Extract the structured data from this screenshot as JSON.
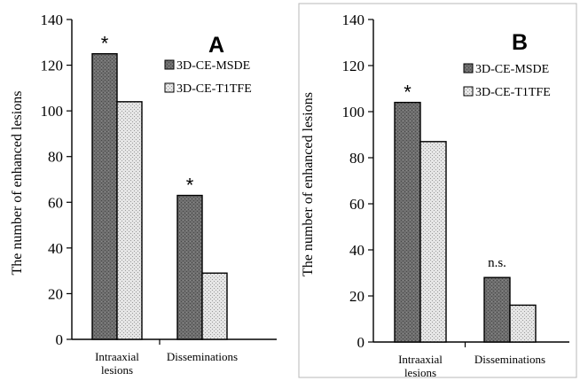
{
  "chart_data": [
    {
      "type": "bar",
      "panel": "A",
      "ylabel": "The number of enhanced lesions",
      "ylim": [
        0,
        140
      ],
      "yticks": [
        0,
        20,
        40,
        60,
        80,
        100,
        120,
        140
      ],
      "categories": [
        "Intraaxial lesions",
        "Disseminations"
      ],
      "category_lines": [
        [
          "Intraaxial",
          "lesions"
        ],
        [
          "Disseminations"
        ]
      ],
      "series": [
        {
          "name": "3D-CE-MSDE",
          "values": [
            125,
            63
          ],
          "color": "#6d6d6d"
        },
        {
          "name": "3D-CE-T1TFE",
          "values": [
            104,
            29
          ],
          "color": "#e4e4e4"
        }
      ],
      "significance": [
        "*",
        "*"
      ],
      "legend_placement": "top-right",
      "grid": false
    },
    {
      "type": "bar",
      "panel": "B",
      "ylabel": "The number of enhanced lesions",
      "ylim": [
        0,
        140
      ],
      "yticks": [
        0,
        20,
        40,
        60,
        80,
        100,
        120,
        140
      ],
      "categories": [
        "Intraaxial lesions",
        "Disseminations"
      ],
      "category_lines": [
        [
          "Intraaxial",
          "lesions"
        ],
        [
          "Disseminations"
        ]
      ],
      "series": [
        {
          "name": "3D-CE-MSDE",
          "values": [
            104,
            28
          ],
          "color": "#6d6d6d"
        },
        {
          "name": "3D-CE-T1TFE",
          "values": [
            87,
            16
          ],
          "color": "#e4e4e4"
        }
      ],
      "significance": [
        "*",
        "n.s."
      ],
      "legend_placement": "top-right",
      "grid": false
    }
  ]
}
